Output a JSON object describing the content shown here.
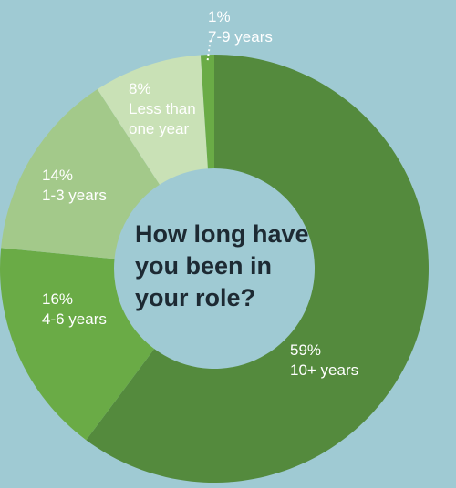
{
  "chart_data": {
    "type": "pie",
    "title": "How long have you been in your role?",
    "title_lines": [
      "How long have",
      "you been in",
      "your role?"
    ],
    "slices": [
      {
        "label": "10+ years",
        "percent_label": "59%",
        "value": 59,
        "color": "#548a3d"
      },
      {
        "label": "4-6 years",
        "percent_label": "16%",
        "value": 16,
        "color": "#6aab46"
      },
      {
        "label": "1-3 years",
        "percent_label": "14%",
        "value": 14,
        "color": "#a3c98a"
      },
      {
        "label": "Less than one year",
        "label_lines": [
          "Less than",
          "one year"
        ],
        "percent_label": "8%",
        "value": 8,
        "color": "#c9e1b6"
      },
      {
        "label": "7-9 years",
        "percent_label": "1%",
        "value": 1,
        "color": "#6aab46"
      }
    ],
    "background": "#9fcad3",
    "legend": "none"
  }
}
